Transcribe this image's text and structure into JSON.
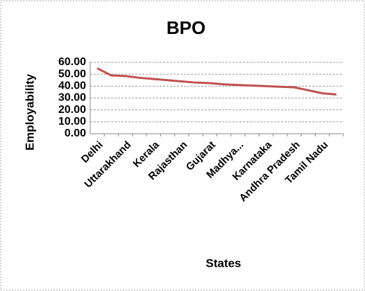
{
  "chart_data": {
    "type": "line",
    "title": "BPO",
    "x_label": "States",
    "y_label": "Employability",
    "categories": [
      "Delhi",
      null,
      "Uttarakhand",
      null,
      "Kerala",
      null,
      "Rajasthan",
      null,
      "Gujarat",
      null,
      "Madhya...",
      null,
      "Karnataka",
      null,
      "Andhra Pradesh",
      null,
      "Tamil Nadu",
      null
    ],
    "series": [
      {
        "name": "BPO",
        "color": "#c0504d",
        "values": [
          55,
          49,
          48.5,
          47,
          46,
          45,
          44,
          43,
          42.5,
          41.5,
          41,
          40.5,
          40,
          39.5,
          39,
          36.5,
          34,
          33
        ]
      }
    ],
    "ylim": [
      0,
      60
    ],
    "yticks": [
      {
        "value": 0,
        "label": "0.00"
      },
      {
        "value": 10,
        "label": "10.00"
      },
      {
        "value": 20,
        "label": "20.00"
      },
      {
        "value": 30,
        "label": "30.00"
      },
      {
        "value": 40,
        "label": "40.00"
      },
      {
        "value": 50,
        "label": "50.00"
      },
      {
        "value": 60,
        "label": "60.00"
      }
    ],
    "grid": true
  }
}
